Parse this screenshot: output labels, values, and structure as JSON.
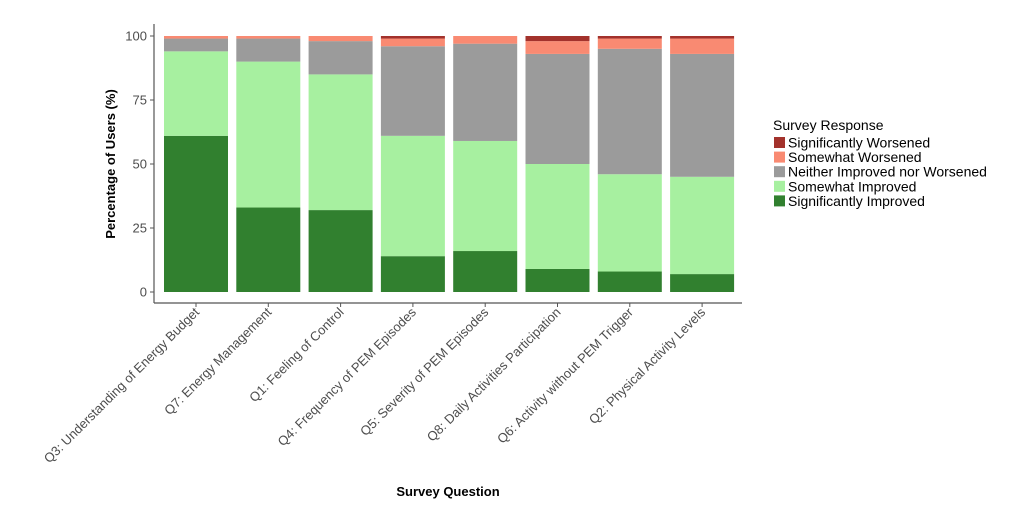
{
  "chart_data": {
    "type": "bar",
    "stacked": true,
    "title": "",
    "xlabel": "Survey Question",
    "ylabel": "Percentage of Users (%)",
    "ylim": [
      0,
      100
    ],
    "yticks": [
      "0",
      "25",
      "50",
      "75",
      "100"
    ],
    "grid": false,
    "legend_title": "Survey Response",
    "legend_position": "right",
    "categories": [
      "Q3: Understanding of Energy Budget",
      "Q7: Energy Management",
      "Q1: Feeling of Control",
      "Q4: Frequency of PEM Episodes",
      "Q5: Severity of PEM Episodes",
      "Q8: Daily Activities Participation",
      "Q6: Activity without PEM Trigger",
      "Q2: Physical Activity Levels"
    ],
    "series": [
      {
        "name": "Significantly Improved",
        "color": "#31802f",
        "values": [
          61,
          33,
          32,
          14,
          16,
          9,
          8,
          7
        ]
      },
      {
        "name": "Somewhat Improved",
        "color": "#a7f0a0",
        "values": [
          33,
          57,
          53,
          47,
          43,
          41,
          38,
          38
        ]
      },
      {
        "name": "Neither Improved nor Worsened",
        "color": "#9b9b9b",
        "values": [
          5,
          9,
          13,
          35,
          38,
          43,
          49,
          48
        ]
      },
      {
        "name": "Somewhat Worsened",
        "color": "#f98a72",
        "values": [
          1,
          1,
          2,
          3,
          3,
          5,
          4,
          6
        ]
      },
      {
        "name": "Significantly Worsened",
        "color": "#a3322c",
        "values": [
          0,
          0,
          0,
          1,
          0,
          2,
          1,
          1
        ]
      }
    ]
  }
}
